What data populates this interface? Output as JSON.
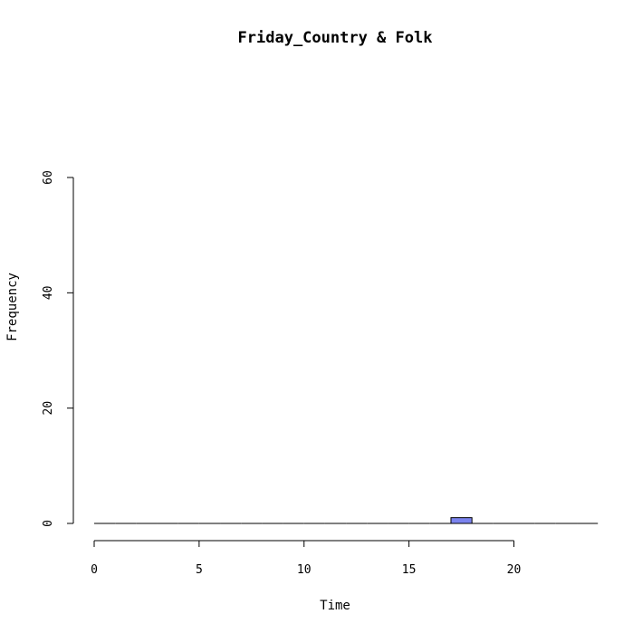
{
  "chart_data": {
    "type": "bar",
    "title": "Friday_Country & Folk",
    "xlabel": "Time",
    "ylabel": "Frequency",
    "xlim": [
      0,
      24
    ],
    "ylim": [
      0,
      60
    ],
    "x_ticks": [
      0,
      5,
      10,
      15,
      20
    ],
    "y_ticks": [
      0,
      20,
      40,
      60
    ],
    "bins": [
      [
        0,
        1
      ],
      [
        1,
        2
      ],
      [
        2,
        3
      ],
      [
        3,
        4
      ],
      [
        4,
        5
      ],
      [
        5,
        6
      ],
      [
        6,
        7
      ],
      [
        7,
        8
      ],
      [
        8,
        9
      ],
      [
        9,
        10
      ],
      [
        10,
        11
      ],
      [
        11,
        12
      ],
      [
        12,
        13
      ],
      [
        13,
        14
      ],
      [
        14,
        15
      ],
      [
        15,
        16
      ],
      [
        16,
        17
      ],
      [
        17,
        18
      ],
      [
        18,
        19
      ],
      [
        19,
        20
      ],
      [
        20,
        21
      ],
      [
        21,
        22
      ],
      [
        22,
        23
      ],
      [
        23,
        24
      ]
    ],
    "values": [
      0,
      0,
      0,
      0,
      0,
      0,
      0,
      0,
      0,
      0,
      0,
      0,
      0,
      0,
      0,
      0,
      0,
      1,
      0,
      0,
      0,
      0,
      0,
      0
    ],
    "bar_color": "#7b83ee",
    "grid": false,
    "legend": false
  }
}
